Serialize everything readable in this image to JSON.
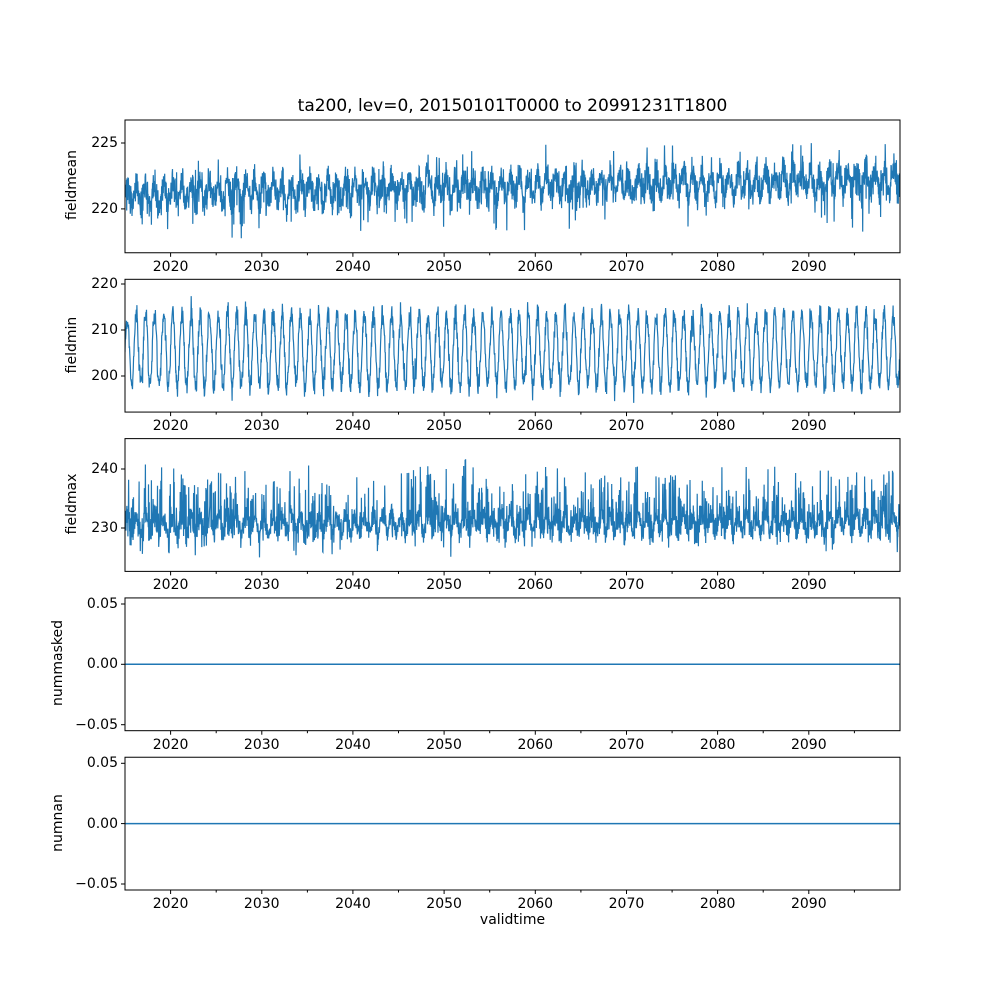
{
  "figure": {
    "background": "#ffffff",
    "text_color": "#000000",
    "spine_color": "#000000"
  },
  "chart_data": {
    "type": "line",
    "title": "ta200, lev=0, 20150101T0000 to 20991231T1800",
    "xlabel": "validtime",
    "line_color": "#1f77b4",
    "grid": false,
    "legend": null,
    "x_axis": {
      "lim": [
        2015,
        2100
      ],
      "major_ticks": [
        {
          "value": 2020,
          "label": "2020"
        },
        {
          "value": 2030,
          "label": "2030"
        },
        {
          "value": 2040,
          "label": "2040"
        },
        {
          "value": 2050,
          "label": "2050"
        },
        {
          "value": 2060,
          "label": "2060"
        },
        {
          "value": 2070,
          "label": "2070"
        },
        {
          "value": 2080,
          "label": "2080"
        },
        {
          "value": 2090,
          "label": "2090"
        }
      ],
      "minor_ticks": [
        2025,
        2035,
        2045,
        2055,
        2065,
        2075,
        2085,
        2095
      ]
    },
    "subplots": [
      {
        "ylabel": "fieldmean",
        "ylim": [
          216.68,
          226.74
        ],
        "yticks": [
          {
            "value": 220,
            "label": "220"
          },
          {
            "value": 225,
            "label": "225"
          }
        ],
        "series": {
          "kind": "noisy",
          "seed": 11,
          "n": 3200,
          "base": 221.15,
          "trend": 1.05,
          "seasonal_amp": 0.8,
          "noise": 1.4,
          "spike_up_prob": 0.05,
          "spike_up": 2.0,
          "spike_down_prob": 0.06,
          "spike_down": 2.6,
          "approx_min": 217.1,
          "approx_max": 226.5
        }
      },
      {
        "ylabel": "fieldmin",
        "ylim": [
          192.16,
          221.02
        ],
        "yticks": [
          {
            "value": 200,
            "label": "200"
          },
          {
            "value": 210,
            "label": "210"
          },
          {
            "value": 220,
            "label": "220"
          }
        ],
        "series": {
          "kind": "noisy",
          "seed": 22,
          "n": 2600,
          "base": 205.6,
          "trend": 0.0,
          "seasonal_amp": 7.9,
          "noise": 3.0,
          "spike_up_prob": 0.03,
          "spike_up": 2.8,
          "spike_down_prob": 0.03,
          "spike_down": 2.6,
          "approx_min": 193.5,
          "approx_max": 219.8
        }
      },
      {
        "ylabel": "fieldmax",
        "ylim": [
          222.65,
          245.15
        ],
        "yticks": [
          {
            "value": 230,
            "label": "230"
          },
          {
            "value": 240,
            "label": "240"
          }
        ],
        "series": {
          "kind": "noisy",
          "seed": 33,
          "n": 3200,
          "base": 230.6,
          "trend": 0.4,
          "seasonal_amp": 1.4,
          "noise": 2.4,
          "spike_up_prob": 0.18,
          "spike_up": 8.5,
          "spike_down_prob": 0.12,
          "spike_down": 2.8,
          "approx_min": 224.0,
          "approx_max": 244.2
        }
      },
      {
        "ylabel": "nummasked",
        "ylim": [
          -0.055,
          0.055
        ],
        "yticks": [
          {
            "value": -0.05,
            "label": "−0.05"
          },
          {
            "value": 0.0,
            "label": "0.00"
          },
          {
            "value": 0.05,
            "label": "0.05"
          }
        ],
        "series": {
          "kind": "constant",
          "value": 0.0
        }
      },
      {
        "ylabel": "numnan",
        "ylim": [
          -0.055,
          0.055
        ],
        "yticks": [
          {
            "value": -0.05,
            "label": "−0.05"
          },
          {
            "value": 0.0,
            "label": "0.00"
          },
          {
            "value": 0.05,
            "label": "0.05"
          }
        ],
        "series": {
          "kind": "constant",
          "value": 0.0
        }
      }
    ]
  }
}
